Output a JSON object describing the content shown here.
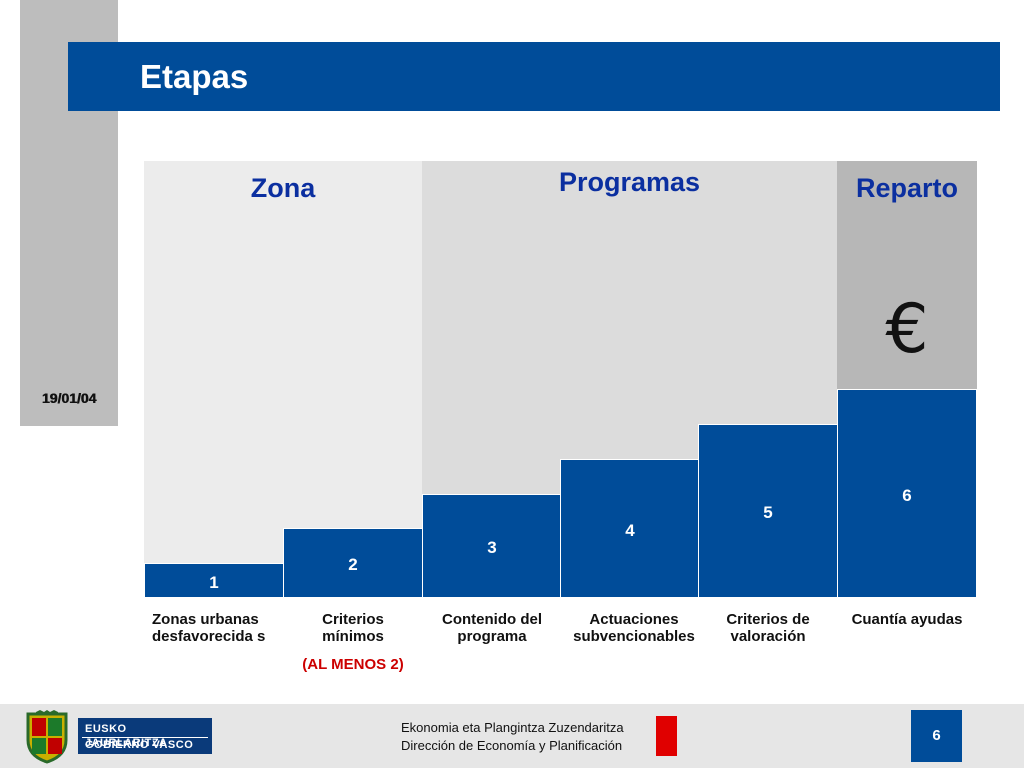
{
  "header": {
    "title": "Etapas",
    "date": "19/01/04"
  },
  "regions": [
    {
      "label": "Zona"
    },
    {
      "label": "Programas"
    },
    {
      "label": "Reparto"
    }
  ],
  "reparto_icon": {
    "name": "euro-icon",
    "glyph": "€"
  },
  "steps": [
    {
      "number": "1",
      "label": "Zonas urbanas desfavorecida s"
    },
    {
      "number": "2",
      "label": "Criterios mínimos"
    },
    {
      "number": "3",
      "label": "Contenido del programa"
    },
    {
      "number": "4",
      "label": "Actuaciones subvencionables"
    },
    {
      "number": "5",
      "label": "Criterios de valoración"
    },
    {
      "number": "6",
      "label": "Cuantía ayudas"
    }
  ],
  "note": "(AL  MENOS 2)",
  "footer": {
    "logo_line_1": "EUSKO JAURLARITZA",
    "logo_line_2": "GOBIERNO VASCO",
    "text_line_1": "Ekonomia eta Plangintza Zuzendaritza",
    "text_line_2": "Dirección de Economía y Planificación",
    "page_number": "6"
  },
  "colors": {
    "accent": "#004c99",
    "region_label": "#0b2fa0",
    "note": "#cc0000",
    "footer_marker": "#e00000"
  }
}
